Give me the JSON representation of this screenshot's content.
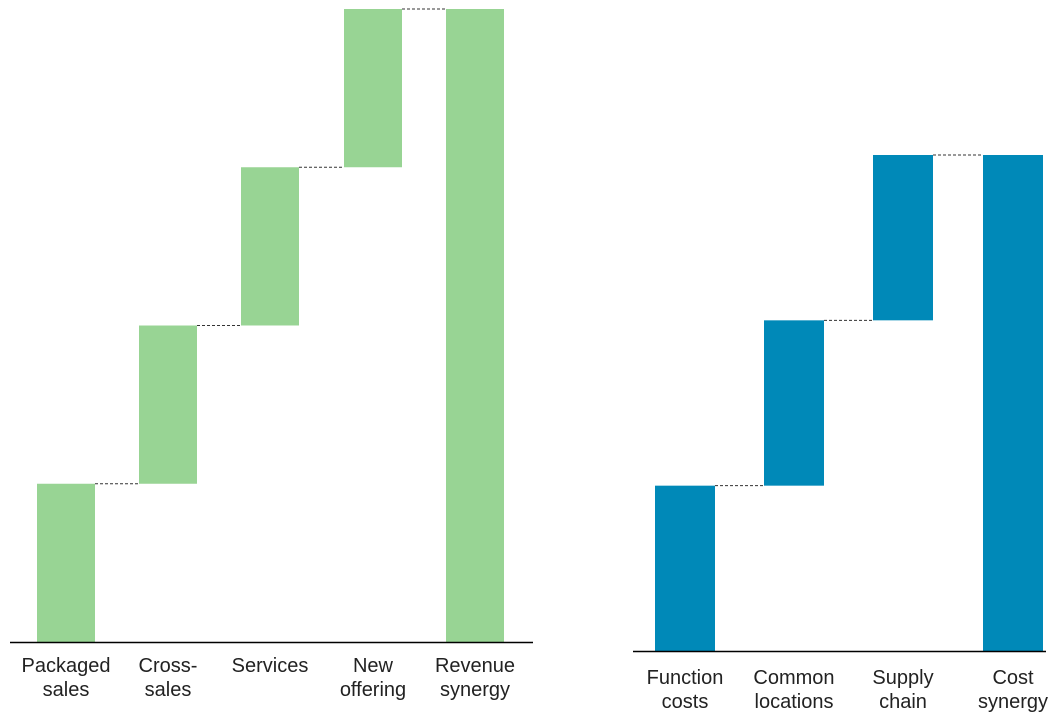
{
  "chart_data": [
    {
      "type": "bar",
      "subtype": "waterfall",
      "categories": [
        "Packaged sales",
        "Cross-sales",
        "Services",
        "New offering",
        "Revenue synergy"
      ],
      "values": [
        1,
        1,
        1,
        1,
        4
      ],
      "total_index": 4,
      "color": "#98d494",
      "ylim": [
        0,
        4
      ]
    },
    {
      "type": "bar",
      "subtype": "waterfall",
      "categories": [
        "Function costs",
        "Common locations",
        "Supply chain",
        "Cost synergy"
      ],
      "values": [
        1,
        1,
        1,
        3
      ],
      "total_index": 3,
      "color": "#0089b8",
      "ylim": [
        0,
        3
      ]
    }
  ]
}
